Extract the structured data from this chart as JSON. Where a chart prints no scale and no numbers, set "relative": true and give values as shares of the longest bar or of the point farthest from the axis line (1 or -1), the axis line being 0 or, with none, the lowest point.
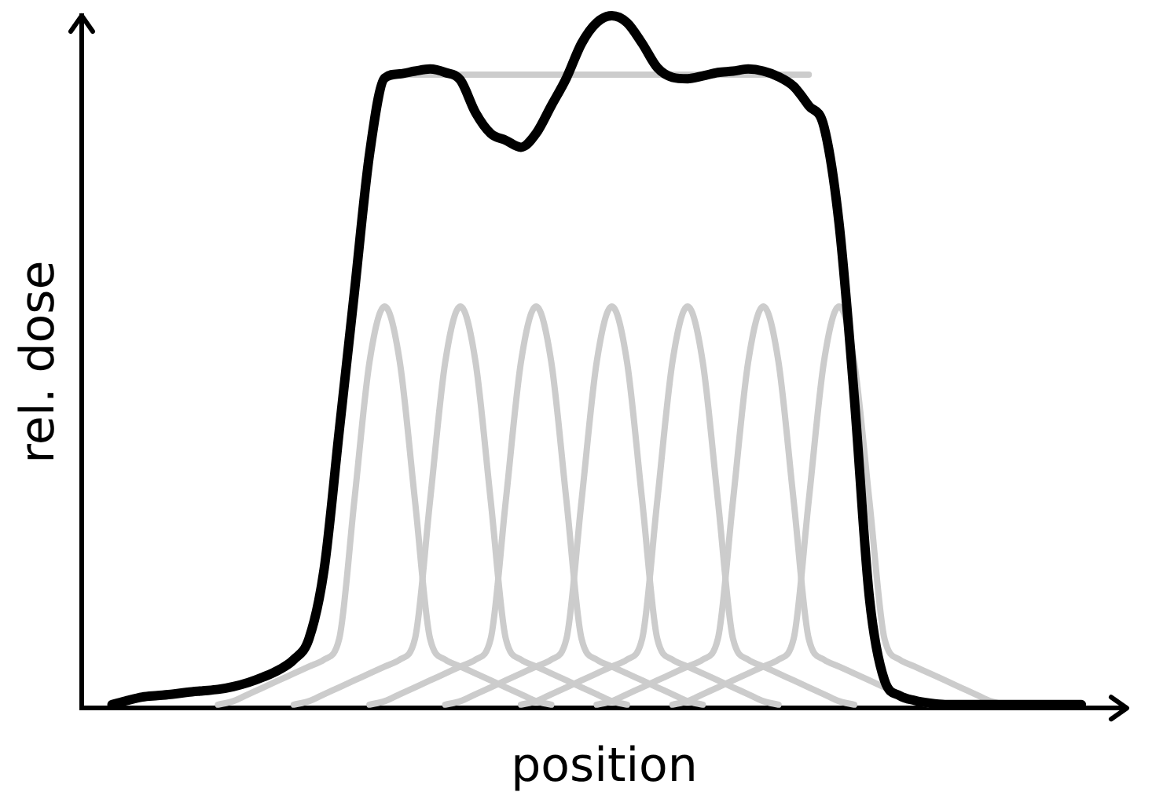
{
  "chart_data": {
    "type": "line",
    "relative": true,
    "xlabel": "position",
    "ylabel": "rel. dose",
    "categories": [
      null,
      null,
      null,
      null,
      null,
      null,
      null,
      null,
      null,
      null,
      null,
      null,
      null,
      null,
      null,
      null,
      null,
      null,
      null,
      null,
      null,
      null,
      null,
      null,
      null,
      null,
      null,
      null,
      null,
      null,
      null,
      null,
      null,
      null,
      null,
      null,
      null,
      null,
      null,
      null,
      null,
      null,
      null,
      null,
      null,
      null,
      null,
      null,
      null,
      null,
      null,
      null,
      null,
      null,
      null,
      null,
      null,
      null,
      null,
      null,
      null,
      null,
      null,
      null,
      null,
      null,
      null,
      null,
      null,
      null
    ],
    "series": [
      {
        "color": "#000000",
        "values": [
          null,
          null,
          0.005,
          0.011,
          0.016,
          0.018,
          0.02,
          0.023,
          0.025,
          0.027,
          0.031,
          0.037,
          0.045,
          0.055,
          0.07,
          0.1,
          0.2,
          0.4,
          0.6,
          0.8,
          0.91,
          0.916,
          0.92,
          0.923,
          0.918,
          0.907,
          0.86,
          0.83,
          0.82,
          0.81,
          0.83,
          0.87,
          0.91,
          0.96,
          0.99,
          1.0,
          0.99,
          0.96,
          0.925,
          0.911,
          0.909,
          0.913,
          0.918,
          0.92,
          0.923,
          0.92,
          0.912,
          0.898,
          0.87,
          0.84,
          0.7,
          0.45,
          0.16,
          0.04,
          0.018,
          0.011,
          0.007,
          0.005,
          0.005,
          0.005,
          0.005,
          0.005,
          0.005,
          0.005,
          0.005,
          0.005,
          0.005,
          null,
          null,
          null
        ]
      },
      {
        "color": "#cccccc",
        "values": [
          null,
          null,
          null,
          null,
          null,
          null,
          null,
          null,
          null,
          null,
          null,
          null,
          null,
          null,
          null,
          null,
          null,
          null,
          null,
          null,
          null,
          0.915,
          0.915,
          0.915,
          0.915,
          0.915,
          0.915,
          0.915,
          0.915,
          0.915,
          0.915,
          0.915,
          0.915,
          0.915,
          0.915,
          0.915,
          0.915,
          0.915,
          0.915,
          0.915,
          0.915,
          0.915,
          0.915,
          0.915,
          0.915,
          0.915,
          0.915,
          0.915,
          0.915,
          null,
          null,
          null,
          null,
          null,
          null,
          null,
          null,
          null,
          null,
          null,
          null,
          null,
          null,
          null,
          null,
          null,
          null,
          null,
          null,
          null
        ]
      },
      {
        "color": "#cccccc",
        "values": [
          null,
          null,
          null,
          null,
          null,
          null,
          null,
          null,
          null,
          0.005,
          0.01,
          0.02,
          0.03,
          0.04,
          0.05,
          0.06,
          0.07,
          0.1,
          0.3,
          0.5,
          0.58,
          0.5,
          0.3,
          0.1,
          0.07,
          0.06,
          0.05,
          0.04,
          0.03,
          0.02,
          0.01,
          0.005,
          null,
          null,
          null,
          null,
          null,
          null,
          null,
          null,
          null,
          null,
          null,
          null,
          null,
          null,
          null,
          null,
          null,
          null,
          null,
          null,
          null,
          null,
          null,
          null,
          null,
          null,
          null,
          null,
          null,
          null,
          null,
          null,
          null,
          null,
          null,
          null,
          null,
          null
        ]
      },
      {
        "color": "#cccccc",
        "values": [
          null,
          null,
          null,
          null,
          null,
          null,
          null,
          null,
          null,
          null,
          null,
          null,
          null,
          null,
          0.005,
          0.01,
          0.02,
          0.03,
          0.04,
          0.05,
          0.06,
          0.07,
          0.1,
          0.3,
          0.5,
          0.58,
          0.5,
          0.3,
          0.1,
          0.07,
          0.06,
          0.05,
          0.04,
          0.03,
          0.02,
          0.01,
          0.005,
          null,
          null,
          null,
          null,
          null,
          null,
          null,
          null,
          null,
          null,
          null,
          null,
          null,
          null,
          null,
          null,
          null,
          null,
          null,
          null,
          null,
          null,
          null,
          null,
          null,
          null,
          null,
          null,
          null,
          null,
          null,
          null,
          null
        ]
      },
      {
        "color": "#cccccc",
        "values": [
          null,
          null,
          null,
          null,
          null,
          null,
          null,
          null,
          null,
          null,
          null,
          null,
          null,
          null,
          null,
          null,
          null,
          null,
          null,
          0.005,
          0.01,
          0.02,
          0.03,
          0.04,
          0.05,
          0.06,
          0.07,
          0.1,
          0.3,
          0.5,
          0.58,
          0.5,
          0.3,
          0.1,
          0.07,
          0.06,
          0.05,
          0.04,
          0.03,
          0.02,
          0.01,
          0.005,
          null,
          null,
          null,
          null,
          null,
          null,
          null,
          null,
          null,
          null,
          null,
          null,
          null,
          null,
          null,
          null,
          null,
          null,
          null,
          null,
          null,
          null,
          null,
          null,
          null,
          null,
          null,
          null
        ]
      },
      {
        "color": "#cccccc",
        "values": [
          null,
          null,
          null,
          null,
          null,
          null,
          null,
          null,
          null,
          null,
          null,
          null,
          null,
          null,
          null,
          null,
          null,
          null,
          null,
          null,
          null,
          null,
          null,
          null,
          0.005,
          0.01,
          0.02,
          0.03,
          0.04,
          0.05,
          0.06,
          0.07,
          0.1,
          0.3,
          0.5,
          0.58,
          0.5,
          0.3,
          0.1,
          0.07,
          0.06,
          0.05,
          0.04,
          0.03,
          0.02,
          0.01,
          0.005,
          null,
          null,
          null,
          null,
          null,
          null,
          null,
          null,
          null,
          null,
          null,
          null,
          null,
          null,
          null,
          null,
          null,
          null,
          null,
          null,
          null,
          null,
          null
        ]
      },
      {
        "color": "#cccccc",
        "values": [
          null,
          null,
          null,
          null,
          null,
          null,
          null,
          null,
          null,
          null,
          null,
          null,
          null,
          null,
          null,
          null,
          null,
          null,
          null,
          null,
          null,
          null,
          null,
          null,
          null,
          null,
          null,
          null,
          null,
          0.005,
          0.01,
          0.02,
          0.03,
          0.04,
          0.05,
          0.06,
          0.07,
          0.1,
          0.3,
          0.5,
          0.58,
          0.5,
          0.3,
          0.1,
          0.07,
          0.06,
          0.05,
          0.04,
          0.03,
          0.02,
          0.01,
          0.005,
          null,
          null,
          null,
          null,
          null,
          null,
          null,
          null,
          null,
          null,
          null,
          null,
          null,
          null,
          null,
          null,
          null,
          null
        ]
      },
      {
        "color": "#cccccc",
        "values": [
          null,
          null,
          null,
          null,
          null,
          null,
          null,
          null,
          null,
          null,
          null,
          null,
          null,
          null,
          null,
          null,
          null,
          null,
          null,
          null,
          null,
          null,
          null,
          null,
          null,
          null,
          null,
          null,
          null,
          null,
          null,
          null,
          null,
          null,
          0.005,
          0.01,
          0.02,
          0.03,
          0.04,
          0.05,
          0.06,
          0.07,
          0.1,
          0.3,
          0.5,
          0.58,
          0.5,
          0.3,
          0.1,
          0.07,
          0.06,
          0.05,
          0.04,
          0.03,
          0.02,
          0.01,
          0.005,
          null,
          null,
          null,
          null,
          null,
          null,
          null,
          null,
          null,
          null,
          null,
          null,
          null
        ]
      },
      {
        "color": "#cccccc",
        "values": [
          null,
          null,
          null,
          null,
          null,
          null,
          null,
          null,
          null,
          null,
          null,
          null,
          null,
          null,
          null,
          null,
          null,
          null,
          null,
          null,
          null,
          null,
          null,
          null,
          null,
          null,
          null,
          null,
          null,
          null,
          null,
          null,
          null,
          null,
          null,
          null,
          null,
          null,
          null,
          0.005,
          0.01,
          0.02,
          0.03,
          0.04,
          0.05,
          0.06,
          0.07,
          0.1,
          0.3,
          0.5,
          0.58,
          0.5,
          0.3,
          0.1,
          0.07,
          0.06,
          0.05,
          0.04,
          0.03,
          0.02,
          0.01,
          0.005,
          null,
          null,
          null,
          null,
          null,
          null,
          null,
          null
        ]
      }
    ]
  }
}
